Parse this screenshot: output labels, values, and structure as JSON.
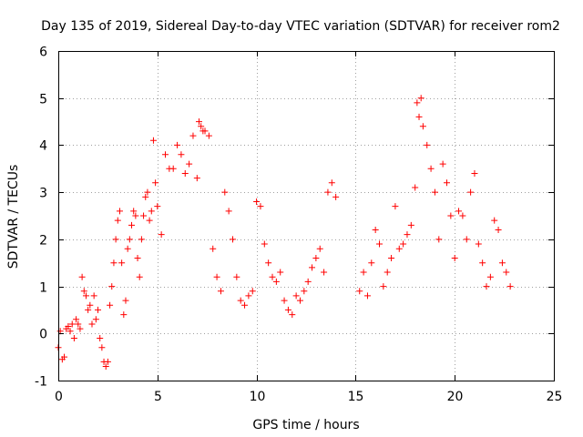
{
  "chart_data": {
    "type": "scatter",
    "title": "Day 135 of 2019, Sidereal Day-to-day VTEC variation (SDTVAR) for receiver rom2",
    "xlabel": "GPS time / hours",
    "ylabel": "SDTVAR / TECUs",
    "xlim": [
      0,
      25
    ],
    "ylim": [
      -1,
      6
    ],
    "xticks": [
      0,
      5,
      10,
      15,
      20,
      25
    ],
    "yticks": [
      -1,
      0,
      1,
      2,
      3,
      4,
      5,
      6
    ],
    "x_tick_labels": [
      "0",
      "5",
      "10",
      "15",
      "20",
      "25"
    ],
    "y_tick_labels": [
      "-1",
      "0",
      "1",
      "2",
      "3",
      "4",
      "5",
      "6"
    ],
    "grid": true,
    "marker": "plus",
    "series": [
      {
        "name": "SDTVAR",
        "color": "#ff0000",
        "x": [
          0.0,
          0.1,
          0.2,
          0.3,
          0.4,
          0.5,
          0.6,
          0.7,
          0.8,
          0.9,
          1.0,
          1.1,
          1.2,
          1.3,
          1.4,
          1.5,
          1.6,
          1.7,
          1.8,
          1.9,
          2.0,
          2.1,
          2.2,
          2.3,
          2.4,
          2.5,
          2.6,
          2.7,
          2.8,
          2.9,
          3.0,
          3.1,
          3.2,
          3.3,
          3.4,
          3.5,
          3.6,
          3.7,
          3.8,
          3.9,
          4.0,
          4.1,
          4.2,
          4.3,
          4.4,
          4.5,
          4.6,
          4.7,
          4.8,
          4.9,
          5.0,
          5.2,
          5.4,
          5.6,
          5.8,
          6.0,
          6.2,
          6.4,
          6.6,
          6.8,
          7.0,
          7.1,
          7.2,
          7.3,
          7.4,
          7.6,
          7.8,
          8.0,
          8.2,
          8.4,
          8.6,
          8.8,
          9.0,
          9.2,
          9.4,
          9.6,
          9.8,
          10.0,
          10.2,
          10.4,
          10.6,
          10.8,
          11.0,
          11.2,
          11.4,
          11.6,
          11.8,
          12.0,
          12.2,
          12.4,
          12.6,
          12.8,
          13.0,
          13.2,
          13.4,
          13.6,
          13.8,
          14.0,
          15.2,
          15.4,
          15.6,
          15.8,
          16.0,
          16.2,
          16.4,
          16.6,
          16.8,
          17.0,
          17.2,
          17.4,
          17.6,
          17.8,
          18.0,
          18.1,
          18.2,
          18.3,
          18.4,
          18.6,
          18.8,
          19.0,
          19.2,
          19.4,
          19.6,
          19.8,
          20.0,
          20.2,
          20.4,
          20.6,
          20.8,
          21.0,
          21.2,
          21.4,
          21.6,
          21.8,
          22.0,
          22.2,
          22.4,
          22.6,
          22.8
        ],
        "y": [
          -0.3,
          0.05,
          -0.55,
          -0.5,
          0.1,
          0.15,
          0.05,
          0.2,
          -0.1,
          0.3,
          0.2,
          0.1,
          1.2,
          0.9,
          0.8,
          0.5,
          0.6,
          0.2,
          0.8,
          0.3,
          0.5,
          -0.1,
          -0.3,
          -0.6,
          -0.7,
          -0.6,
          0.6,
          1.0,
          1.5,
          2.0,
          2.4,
          2.6,
          1.5,
          0.4,
          0.7,
          1.8,
          2.0,
          2.3,
          2.6,
          2.5,
          1.6,
          1.2,
          2.0,
          2.5,
          2.9,
          3.0,
          2.4,
          2.6,
          4.1,
          3.2,
          2.7,
          2.1,
          3.8,
          3.5,
          3.5,
          4.0,
          3.8,
          3.4,
          3.6,
          4.2,
          3.3,
          4.5,
          4.4,
          4.3,
          4.3,
          4.2,
          1.8,
          1.2,
          0.9,
          3.0,
          2.6,
          2.0,
          1.2,
          0.7,
          0.6,
          0.8,
          0.9,
          2.8,
          2.7,
          1.9,
          1.5,
          1.2,
          1.1,
          1.3,
          0.7,
          0.5,
          0.4,
          0.8,
          0.7,
          0.9,
          1.1,
          1.4,
          1.6,
          1.8,
          1.3,
          3.0,
          3.2,
          2.9,
          0.9,
          1.3,
          0.8,
          1.5,
          2.2,
          1.9,
          1.0,
          1.3,
          1.6,
          2.7,
          1.8,
          1.9,
          2.1,
          2.3,
          3.1,
          4.9,
          4.6,
          5.0,
          4.4,
          4.0,
          3.5,
          3.0,
          2.0,
          3.6,
          3.2,
          2.5,
          1.6,
          2.6,
          2.5,
          2.0,
          3.0,
          3.4,
          1.9,
          1.5,
          1.0,
          1.2,
          2.4,
          2.2,
          1.5,
          1.3,
          1.0
        ]
      }
    ]
  }
}
